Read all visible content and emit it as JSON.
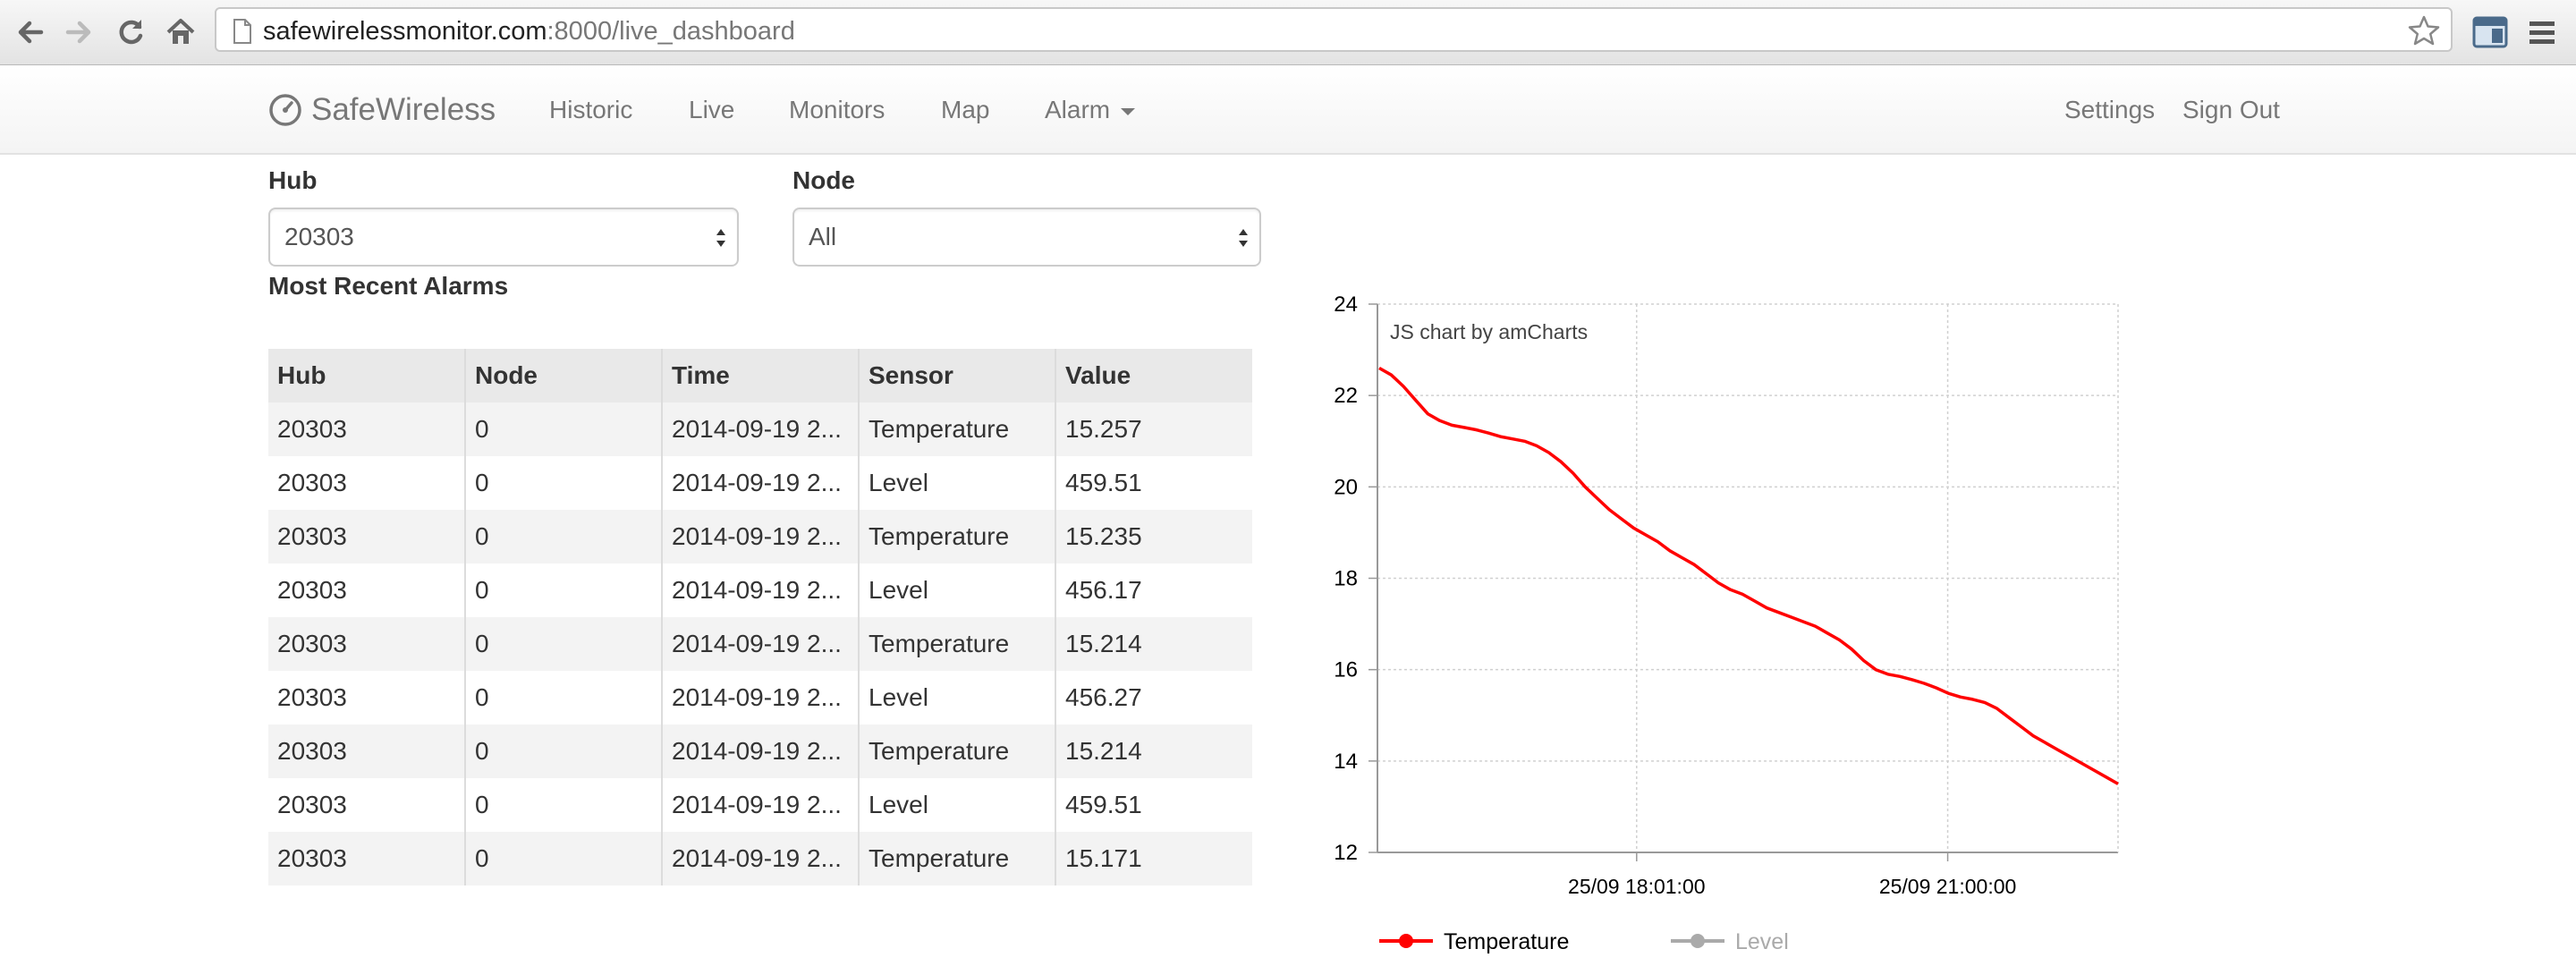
{
  "browser": {
    "url_host": "safewirelessmonitor.com",
    "url_rest": ":8000/live_dashboard",
    "icons": [
      "back-icon",
      "forward-icon",
      "reload-icon",
      "home-icon",
      "page-icon",
      "star-icon",
      "extension-icon",
      "menu-icon"
    ]
  },
  "navbar": {
    "brand": "SafeWireless",
    "links": [
      "Historic",
      "Live",
      "Monitors",
      "Map",
      "Alarm"
    ],
    "right_links": [
      "Settings",
      "Sign Out"
    ]
  },
  "filters": {
    "hub_label": "Hub",
    "hub_value": "20303",
    "node_label": "Node",
    "node_value": "All"
  },
  "alarms": {
    "title": "Most Recent Alarms",
    "columns": [
      "Hub",
      "Node",
      "Time",
      "Sensor",
      "Value"
    ],
    "rows": [
      [
        "20303",
        "0",
        "2014-09-19 2...",
        "Temperature",
        "15.257"
      ],
      [
        "20303",
        "0",
        "2014-09-19 2...",
        "Level",
        "459.51"
      ],
      [
        "20303",
        "0",
        "2014-09-19 2...",
        "Temperature",
        "15.235"
      ],
      [
        "20303",
        "0",
        "2014-09-19 2...",
        "Level",
        "456.17"
      ],
      [
        "20303",
        "0",
        "2014-09-19 2...",
        "Temperature",
        "15.214"
      ],
      [
        "20303",
        "0",
        "2014-09-19 2...",
        "Level",
        "456.27"
      ],
      [
        "20303",
        "0",
        "2014-09-19 2...",
        "Temperature",
        "15.214"
      ],
      [
        "20303",
        "0",
        "2014-09-19 2...",
        "Level",
        "459.51"
      ],
      [
        "20303",
        "0",
        "2014-09-19 2...",
        "Temperature",
        "15.171"
      ]
    ]
  },
  "chart_data": {
    "type": "line",
    "credit": "JS chart by amCharts",
    "ylim": [
      12,
      24
    ],
    "y_ticks": [
      12,
      14,
      16,
      18,
      20,
      22,
      24
    ],
    "x_ticks": [
      "25/09 18:01:00",
      "25/09 21:00:00"
    ],
    "grid": true,
    "legend_position": "bottom",
    "legend": [
      {
        "name": "Temperature",
        "color": "#ff0000",
        "active": true
      },
      {
        "name": "Level",
        "color": "#aaaaaa",
        "active": false
      }
    ],
    "series": [
      {
        "name": "Temperature",
        "color": "#ff0000",
        "values": [
          22.6,
          22.45,
          22.2,
          21.9,
          21.6,
          21.45,
          21.35,
          21.3,
          21.25,
          21.18,
          21.1,
          21.05,
          21.0,
          20.9,
          20.75,
          20.55,
          20.3,
          20.0,
          19.75,
          19.5,
          19.3,
          19.1,
          18.95,
          18.8,
          18.6,
          18.45,
          18.3,
          18.1,
          17.9,
          17.75,
          17.65,
          17.5,
          17.35,
          17.25,
          17.15,
          17.05,
          16.95,
          16.8,
          16.65,
          16.45,
          16.2,
          16.0,
          15.9,
          15.85,
          15.78,
          15.7,
          15.6,
          15.48,
          15.4,
          15.35,
          15.28,
          15.15,
          14.95,
          14.75,
          14.55,
          14.4,
          14.25,
          14.1,
          13.95,
          13.8,
          13.65,
          13.5
        ]
      }
    ]
  },
  "colors": {
    "accent": "#ff0000",
    "nav_text": "#777777",
    "table_header_bg": "#e9e9e9"
  }
}
